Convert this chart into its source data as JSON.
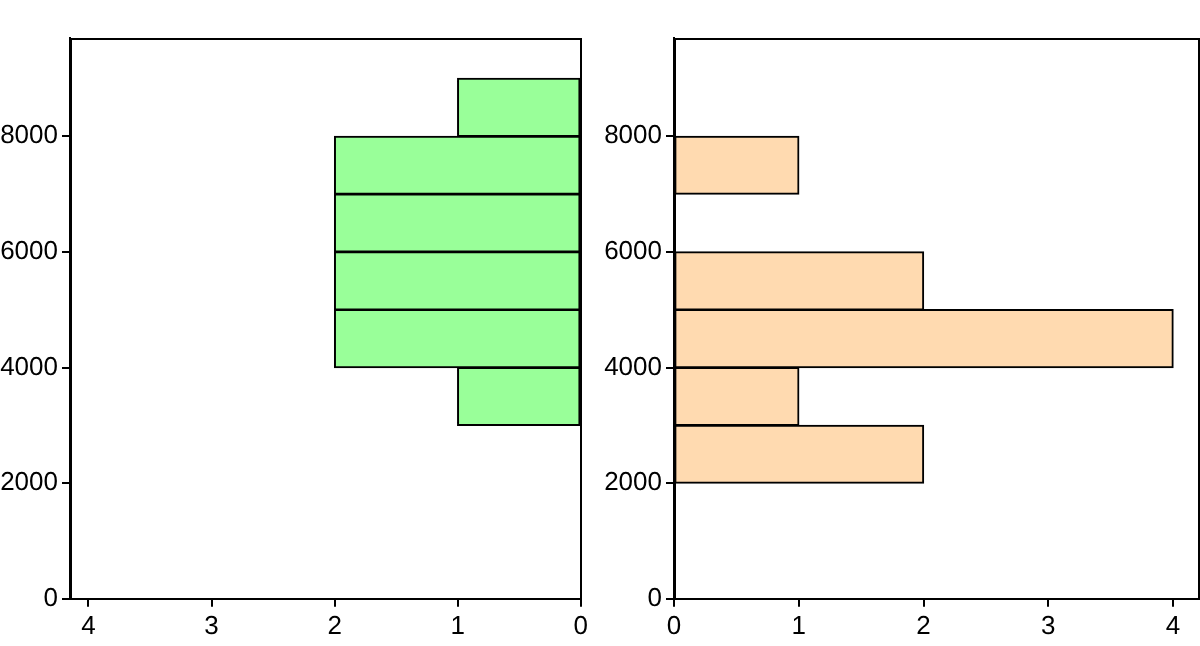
{
  "chart_data": [
    {
      "type": "histogram",
      "orientation": "horizontal",
      "bins": [
        3000,
        4000,
        5000,
        6000,
        7000,
        8000,
        9000
      ],
      "values": [
        1,
        2,
        2,
        2,
        2,
        1
      ],
      "color": "#99ff99",
      "xlim": [
        4.15,
        0
      ],
      "xticks": [
        4,
        3,
        2,
        1,
        0
      ],
      "ylim": [
        0,
        9700
      ],
      "yticks": [
        0,
        2000,
        4000,
        6000,
        8000
      ]
    },
    {
      "type": "histogram",
      "orientation": "horizontal",
      "bins": [
        2000,
        3000,
        4000,
        5000,
        6000,
        7000,
        8000
      ],
      "values": [
        2,
        1,
        4,
        2,
        0,
        1
      ],
      "color": "#ffdab0",
      "xlim": [
        0,
        4.2
      ],
      "xticks": [
        0,
        1,
        2,
        3,
        4
      ],
      "ylim": [
        0,
        9700
      ],
      "yticks": [
        0,
        2000,
        4000,
        6000,
        8000
      ]
    }
  ]
}
